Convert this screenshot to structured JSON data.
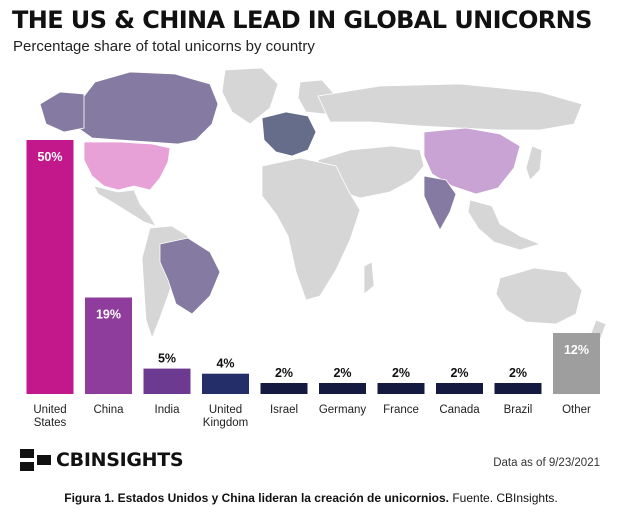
{
  "figure": {
    "title": "THE US & CHINA LEAD IN GLOBAL UNICORNS",
    "subtitle": "Percentage share of total unicorns by country",
    "brand_logo": "CBINSIGHTS",
    "data_note": "Data as of 9/23/2021",
    "caption_bold": "Figura 1. Estados Unidos y China lideran la creación de unicornios.",
    "caption_rest": " Fuente. CBInsights."
  },
  "chart_data": {
    "type": "bar",
    "title": "THE US & CHINA LEAD IN GLOBAL UNICORNS",
    "subtitle": "Percentage share of total unicorns by country",
    "unit": "%",
    "categories": [
      [
        "United",
        "States"
      ],
      [
        "China"
      ],
      [
        "India"
      ],
      [
        "United",
        "Kingdom"
      ],
      [
        "Israel"
      ],
      [
        "Germany"
      ],
      [
        "France"
      ],
      [
        "Canada"
      ],
      [
        "Brazil"
      ],
      [
        "Other"
      ]
    ],
    "values": [
      50,
      19,
      5,
      4,
      2,
      2,
      2,
      2,
      2,
      12
    ],
    "data_labels": [
      "50%",
      "19%",
      "5%",
      "4%",
      "2%",
      "2%",
      "2%",
      "2%",
      "2%",
      "12%"
    ],
    "bar_colors": [
      "#c2188c",
      "#8e3d9c",
      "#6d3a92",
      "#242e68",
      "#141a40",
      "#141a40",
      "#141a40",
      "#141a40",
      "#141a40",
      "#9e9e9e"
    ],
    "ylim": [
      0,
      50
    ],
    "legend": false,
    "grid": false,
    "background": "world map with country shares highlighted"
  },
  "map_colors": {
    "land": "#d6d6d6",
    "us": "#e8a1d6",
    "canada": "#857aa1",
    "china": "#c9a3d3",
    "brazil": "#857aa1",
    "europe": "#656d8b"
  }
}
